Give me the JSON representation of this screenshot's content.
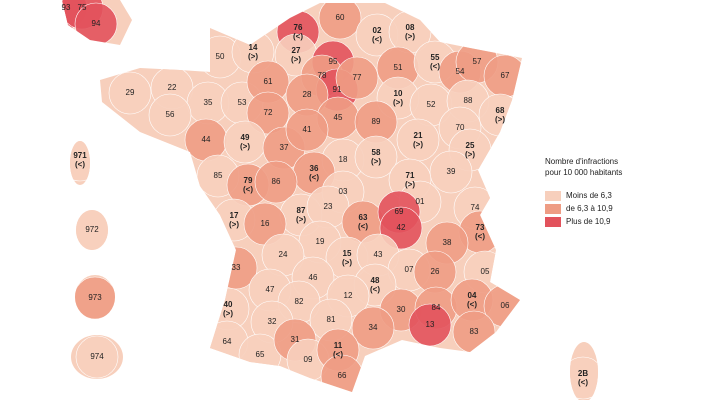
{
  "legend": {
    "title_line1": "Nombre d'infractions",
    "title_line2": "pour 10 000 habitants",
    "items": [
      {
        "label": "Moins de 6,3",
        "color": "#f7cfbc"
      },
      {
        "label": "de 6,3 à 10,9",
        "color": "#ee9c84"
      },
      {
        "label": "Plus de 10,9",
        "color": "#e2525c"
      }
    ]
  },
  "departments": [
    {
      "label": "93",
      "level": 2
    },
    {
      "label": "75",
      "level": 2
    },
    {
      "label": "94",
      "level": 2
    },
    {
      "label": "76",
      "note": "(<)",
      "level": 2
    },
    {
      "label": "60",
      "level": 1
    },
    {
      "label": "02",
      "note": "(<)",
      "level": 0
    },
    {
      "label": "08",
      "note": "(>)",
      "level": 0
    },
    {
      "label": "50",
      "level": 0
    },
    {
      "label": "14",
      "note": "(>)",
      "level": 0
    },
    {
      "label": "27",
      "note": "(>)",
      "level": 0
    },
    {
      "label": "95",
      "level": 2
    },
    {
      "label": "78",
      "level": 1
    },
    {
      "label": "91",
      "level": 2
    },
    {
      "label": "77",
      "level": 1
    },
    {
      "label": "51",
      "level": 1
    },
    {
      "label": "55",
      "note": "(<)",
      "level": 0
    },
    {
      "label": "54",
      "level": 1
    },
    {
      "label": "57",
      "level": 1
    },
    {
      "label": "67",
      "level": 1
    },
    {
      "label": "29",
      "level": 0
    },
    {
      "label": "22",
      "level": 0
    },
    {
      "label": "35",
      "level": 0
    },
    {
      "label": "53",
      "level": 0
    },
    {
      "label": "61",
      "level": 1
    },
    {
      "label": "72",
      "level": 1
    },
    {
      "label": "28",
      "level": 1
    },
    {
      "label": "45",
      "level": 1
    },
    {
      "label": "10",
      "note": "(>)",
      "level": 0
    },
    {
      "label": "52",
      "level": 0
    },
    {
      "label": "88",
      "level": 0
    },
    {
      "label": "68",
      "note": "(>)",
      "level": 0
    },
    {
      "label": "56",
      "level": 0
    },
    {
      "label": "44",
      "level": 1
    },
    {
      "label": "49",
      "note": "(>)",
      "level": 0
    },
    {
      "label": "37",
      "level": 1
    },
    {
      "label": "41",
      "level": 1
    },
    {
      "label": "89",
      "level": 1
    },
    {
      "label": "21",
      "note": "(>)",
      "level": 0
    },
    {
      "label": "70",
      "level": 0
    },
    {
      "label": "25",
      "note": "(>)",
      "level": 0
    },
    {
      "label": "18",
      "level": 0
    },
    {
      "label": "36",
      "note": "(<)",
      "level": 1
    },
    {
      "label": "58",
      "note": "(>)",
      "level": 0
    },
    {
      "label": "39",
      "level": 0
    },
    {
      "label": "71",
      "note": "(>)",
      "level": 0
    },
    {
      "label": "85",
      "level": 0
    },
    {
      "label": "79",
      "note": "(<)",
      "level": 1
    },
    {
      "label": "86",
      "level": 1
    },
    {
      "label": "03",
      "level": 0
    },
    {
      "label": "01",
      "level": 0
    },
    {
      "label": "74",
      "level": 0
    },
    {
      "label": "17",
      "note": "(>)",
      "level": 0
    },
    {
      "label": "87",
      "note": "(>)",
      "level": 0
    },
    {
      "label": "23",
      "level": 0
    },
    {
      "label": "63",
      "note": "(<)",
      "level": 1
    },
    {
      "label": "69",
      "level": 2
    },
    {
      "label": "42",
      "level": 2
    },
    {
      "label": "73",
      "note": "(<)",
      "level": 1
    },
    {
      "label": "38",
      "level": 1
    },
    {
      "label": "16",
      "level": 1
    },
    {
      "label": "19",
      "level": 0
    },
    {
      "label": "15",
      "note": "(>)",
      "level": 0
    },
    {
      "label": "43",
      "level": 0
    },
    {
      "label": "33",
      "level": 1
    },
    {
      "label": "24",
      "level": 0
    },
    {
      "label": "07",
      "level": 0
    },
    {
      "label": "26",
      "level": 1
    },
    {
      "label": "05",
      "level": 0
    },
    {
      "label": "46",
      "level": 0
    },
    {
      "label": "48",
      "note": "(<)",
      "level": 0
    },
    {
      "label": "40",
      "note": "(>)",
      "level": 0
    },
    {
      "label": "47",
      "level": 0
    },
    {
      "label": "82",
      "level": 0
    },
    {
      "label": "12",
      "level": 0
    },
    {
      "label": "30",
      "level": 1
    },
    {
      "label": "84",
      "level": 1
    },
    {
      "label": "04",
      "note": "(<)",
      "level": 1
    },
    {
      "label": "06",
      "level": 1
    },
    {
      "label": "32",
      "level": 0
    },
    {
      "label": "81",
      "level": 0
    },
    {
      "label": "34",
      "level": 1
    },
    {
      "label": "13",
      "level": 2
    },
    {
      "label": "83",
      "level": 1
    },
    {
      "label": "64",
      "level": 0
    },
    {
      "label": "65",
      "level": 0
    },
    {
      "label": "31",
      "level": 1
    },
    {
      "label": "09",
      "level": 0
    },
    {
      "label": "11",
      "note": "(<)",
      "level": 1
    },
    {
      "label": "66",
      "level": 1
    },
    {
      "label": "2B",
      "note": "(<)",
      "level": 0
    },
    {
      "label": "971",
      "note": "(<)",
      "level": 0
    },
    {
      "label": "972",
      "level": 0
    },
    {
      "label": "973",
      "level": 1
    },
    {
      "label": "974",
      "level": 0
    }
  ]
}
